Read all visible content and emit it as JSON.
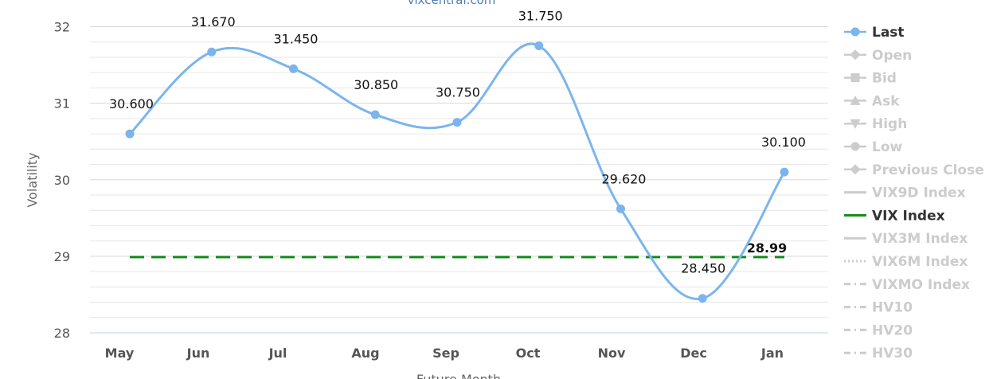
{
  "chart_data": {
    "type": "line",
    "site_credit": "vixcentral.com",
    "xlabel": "Future Month",
    "ylabel": "Volatility",
    "categories": [
      "May",
      "Jun",
      "Jul",
      "Aug",
      "Sep",
      "Oct",
      "Nov",
      "Dec",
      "Jan"
    ],
    "ylim": [
      28,
      32
    ],
    "yticks": [
      "28",
      "29",
      "30",
      "31",
      "32"
    ],
    "grid": true,
    "legend_position": "right",
    "series": [
      {
        "name": "Last",
        "color": "#7cb5ec",
        "values": [
          30.6,
          31.67,
          31.45,
          30.85,
          30.75,
          31.75,
          29.62,
          28.45,
          30.1
        ],
        "labels": [
          "30.600",
          "31.670",
          "31.450",
          "30.850",
          "30.750",
          "31.750",
          "29.620",
          "28.450",
          "30.100"
        ]
      },
      {
        "name": "VIX Index",
        "color": "#138a1c",
        "value": 28.99,
        "label": "28.99"
      }
    ],
    "legend": [
      {
        "name": "Last",
        "active": true,
        "symbol": "circle",
        "color": "#7cb5ec"
      },
      {
        "name": "Open",
        "active": false,
        "symbol": "diamond"
      },
      {
        "name": "Bid",
        "active": false,
        "symbol": "square"
      },
      {
        "name": "Ask",
        "active": false,
        "symbol": "triangle"
      },
      {
        "name": "High",
        "active": false,
        "symbol": "triangle-down"
      },
      {
        "name": "Low",
        "active": false,
        "symbol": "circle"
      },
      {
        "name": "Previous Close",
        "active": false,
        "symbol": "diamond"
      },
      {
        "name": "VIX9D Index",
        "active": false,
        "symbol": "solid"
      },
      {
        "name": "VIX Index",
        "active": true,
        "symbol": "solid",
        "color": "#138a1c"
      },
      {
        "name": "VIX3M Index",
        "active": false,
        "symbol": "solid"
      },
      {
        "name": "VIX6M Index",
        "active": false,
        "symbol": "dotted"
      },
      {
        "name": "VIXMO Index",
        "active": false,
        "symbol": "dashdot"
      },
      {
        "name": "HV10",
        "active": false,
        "symbol": "dashdot"
      },
      {
        "name": "HV20",
        "active": false,
        "symbol": "dashdot"
      },
      {
        "name": "HV30",
        "active": false,
        "symbol": "dashdot"
      }
    ],
    "legend_inactive_color": "#cccccc"
  }
}
